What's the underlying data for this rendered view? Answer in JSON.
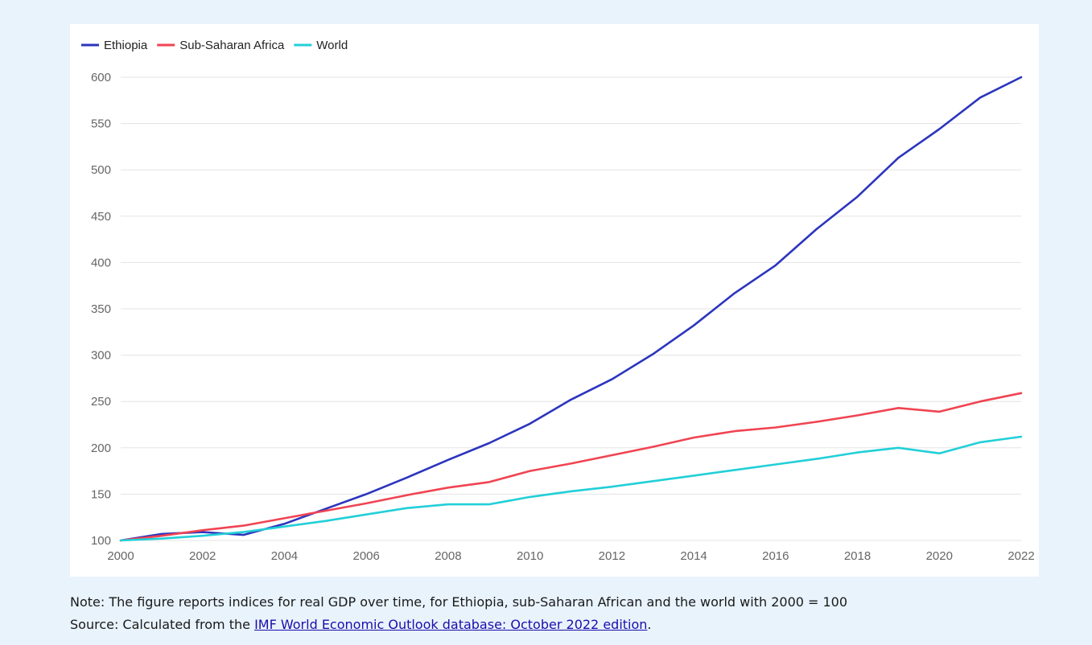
{
  "chart_data": {
    "type": "line",
    "title": "",
    "xlabel": "",
    "ylabel": "",
    "x": [
      2000,
      2001,
      2002,
      2003,
      2004,
      2005,
      2006,
      2007,
      2008,
      2009,
      2010,
      2011,
      2012,
      2013,
      2014,
      2015,
      2016,
      2017,
      2018,
      2019,
      2020,
      2021,
      2022
    ],
    "xticks": [
      2000,
      2002,
      2004,
      2006,
      2008,
      2010,
      2012,
      2014,
      2016,
      2018,
      2020,
      2022
    ],
    "yticks": [
      100,
      150,
      200,
      250,
      300,
      350,
      400,
      450,
      500,
      550,
      600
    ],
    "xlim": [
      2000,
      2022
    ],
    "ylim": [
      100,
      600
    ],
    "grid": "horizontal",
    "legend_position": "top-left",
    "series": [
      {
        "name": "Ethiopia",
        "color": "#2c35bd",
        "values": [
          100,
          107,
          109,
          106,
          118,
          134,
          150,
          168,
          187,
          205,
          226,
          252,
          274,
          301,
          332,
          367,
          397,
          436,
          471,
          513,
          544,
          578,
          600
        ]
      },
      {
        "name": "Sub-Saharan Africa",
        "color": "#f04452",
        "values": [
          100,
          105,
          111,
          116,
          124,
          132,
          140,
          149,
          157,
          163,
          175,
          183,
          192,
          201,
          211,
          218,
          222,
          228,
          235,
          243,
          239,
          250,
          259
        ]
      },
      {
        "name": "World",
        "color": "#22cfd8",
        "values": [
          100,
          102,
          105,
          109,
          115,
          121,
          128,
          135,
          139,
          139,
          147,
          153,
          158,
          164,
          170,
          176,
          182,
          188,
          195,
          200,
          194,
          206,
          212
        ]
      }
    ]
  },
  "notes": {
    "note": "Note: The figure reports indices for real GDP over time, for Ethiopia, sub-Saharan African and the world with 2000 = 100",
    "source_prefix": "Source: Calculated from the ",
    "source_link": "IMF World Economic Outlook database: October 2022 edition",
    "source_suffix": "."
  }
}
